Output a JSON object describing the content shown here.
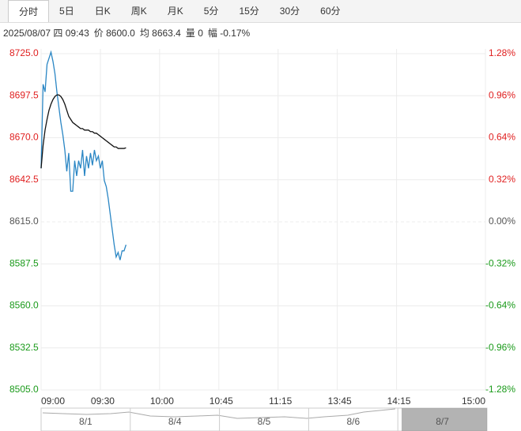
{
  "tabs": [
    "分时",
    "5日",
    "日K",
    "周K",
    "月K",
    "5分",
    "15分",
    "30分",
    "60分"
  ],
  "info": [
    "2025/08/07 四 09:43",
    "价 8600.0",
    "均 8663.4",
    "量 0",
    "幅 -0.17%"
  ],
  "navigator": {
    "dates": [
      "8/1",
      "8/4",
      "8/5",
      "8/6",
      "8/7"
    ]
  },
  "chart_data": {
    "type": "line",
    "x": [
      0,
      1,
      2,
      3,
      4,
      5,
      6,
      7,
      8,
      9,
      10,
      11,
      12,
      13,
      14,
      15,
      16,
      17,
      18,
      19,
      20,
      21,
      22,
      23,
      24,
      25,
      26,
      27,
      28,
      29,
      30,
      31,
      32,
      33,
      34,
      35,
      36,
      37,
      38,
      39,
      40,
      41,
      42,
      43
    ],
    "series": [
      {
        "color": "#2a86c4",
        "values": [
          8650,
          8705,
          8700,
          8718,
          8722,
          8726,
          8720,
          8712,
          8700,
          8690,
          8680,
          8672,
          8662,
          8648,
          8660,
          8635,
          8635,
          8655,
          8645,
          8655,
          8650,
          8662,
          8645,
          8658,
          8650,
          8660,
          8652,
          8662,
          8655,
          8658,
          8650,
          8655,
          8642,
          8638,
          8630,
          8620,
          8610,
          8600,
          8592,
          8595,
          8590,
          8596,
          8596,
          8600
        ]
      },
      {
        "color": "#111111",
        "values": [
          8650,
          8665,
          8675,
          8682,
          8688,
          8692,
          8695,
          8697,
          8698,
          8698,
          8697,
          8695,
          8692,
          8688,
          8684,
          8682,
          8680,
          8679,
          8678,
          8677,
          8676,
          8676,
          8675,
          8675,
          8675,
          8674,
          8674,
          8673,
          8673,
          8672,
          8671,
          8670,
          8669,
          8668,
          8667,
          8666,
          8665,
          8664,
          8664,
          8663,
          8663,
          8663,
          8663,
          8663.4
        ]
      }
    ],
    "xlim": [
      0,
      225
    ],
    "xticks": [
      {
        "value": 0,
        "label": "09:00"
      },
      {
        "value": 30,
        "label": "09:30"
      },
      {
        "value": 60,
        "label": "10:00"
      },
      {
        "value": 90,
        "label": "10:45"
      },
      {
        "value": 120,
        "label": "11:15"
      },
      {
        "value": 150,
        "label": "13:45"
      },
      {
        "value": 180,
        "label": "14:15"
      },
      {
        "value": 225,
        "label": "15:00"
      }
    ],
    "ylim": [
      8505,
      8725
    ],
    "yticks": [
      {
        "value": 8725,
        "label": "8725.0"
      },
      {
        "value": 8697.5,
        "label": "8697.5"
      },
      {
        "value": 8670,
        "label": "8670.0"
      },
      {
        "value": 8642.5,
        "label": "8642.5"
      },
      {
        "value": 8615,
        "label": "8615.0"
      },
      {
        "value": 8587.5,
        "label": "8587.5"
      },
      {
        "value": 8560,
        "label": "8560.0"
      },
      {
        "value": 8532.5,
        "label": "8532.5"
      },
      {
        "value": 8505,
        "label": "8505.0"
      }
    ],
    "y2lim": [
      -1.28,
      1.28
    ],
    "y2ticks": [
      {
        "value": 1.28,
        "label": "1.28%"
      },
      {
        "value": 0.96,
        "label": "0.96%"
      },
      {
        "value": 0.64,
        "label": "0.64%"
      },
      {
        "value": 0.32,
        "label": "0.32%"
      },
      {
        "value": 0,
        "label": "0.00%"
      },
      {
        "value": -0.32,
        "label": "-0.32%"
      },
      {
        "value": -0.64,
        "label": "-0.64%"
      },
      {
        "value": -0.96,
        "label": "-0.96%"
      },
      {
        "value": -1.28,
        "label": "-1.28%"
      }
    ],
    "grid": true
  }
}
